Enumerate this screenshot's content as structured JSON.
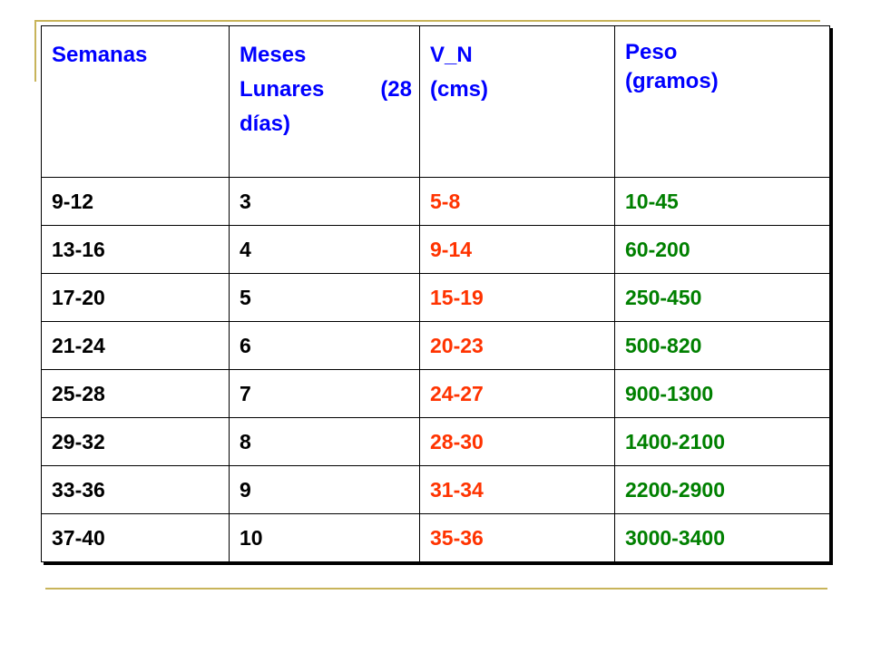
{
  "table": {
    "headers": {
      "semanas": "Semanas",
      "meses_line1": "Meses",
      "meses_line2": "Lunares (28",
      "meses_line3": "días)",
      "vn_line1": "V_N",
      "vn_line2": "(cms)",
      "peso_line1": "Peso",
      "peso_line2": "(gramos)"
    },
    "rows": [
      {
        "semanas": "9-12",
        "meses": "3",
        "vn": "5-8",
        "peso": "10-45"
      },
      {
        "semanas": "13-16",
        "meses": "4",
        "vn": "9-14",
        "peso": "60-200"
      },
      {
        "semanas": "17-20",
        "meses": "5",
        "vn": "15-19",
        "peso": "250-450"
      },
      {
        "semanas": "21-24",
        "meses": "6",
        "vn": "20-23",
        "peso": "500-820"
      },
      {
        "semanas": "25-28",
        "meses": "7",
        "vn": "24-27",
        "peso": "900-1300"
      },
      {
        "semanas": "29-32",
        "meses": "8",
        "vn": "28-30",
        "peso": "1400-2100"
      },
      {
        "semanas": "33-36",
        "meses": "9",
        "vn": "31-34",
        "peso": "2200-2900"
      },
      {
        "semanas": "37-40",
        "meses": "10",
        "vn": "35-36",
        "peso": "3000-3400"
      }
    ]
  },
  "colors": {
    "header_text": "#0000ff",
    "vn_values": "#ff3300",
    "peso_values": "#008000",
    "decor_lines": "#c8b45a"
  }
}
